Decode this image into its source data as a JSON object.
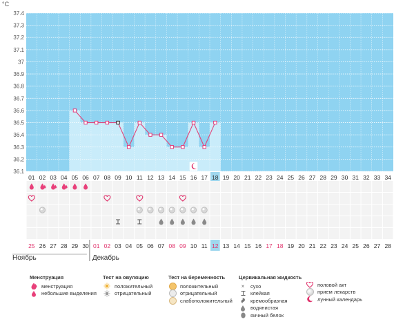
{
  "chart_data": {
    "type": "line",
    "unit_label": "°C",
    "y_ticks": [
      "37.4",
      "37.3",
      "37.2",
      "37.1",
      "37",
      "36.9",
      "36.8",
      "36.7",
      "36.6",
      "36.5",
      "36.4",
      "36.3",
      "36.2",
      "36.1"
    ],
    "ylim": [
      36.1,
      37.4
    ],
    "cycle_days": [
      "01",
      "02",
      "03",
      "04",
      "05",
      "06",
      "07",
      "08",
      "09",
      "10",
      "11",
      "12",
      "13",
      "14",
      "15",
      "16",
      "17",
      "18",
      "19",
      "20",
      "21",
      "22",
      "23",
      "24",
      "25",
      "26",
      "27",
      "28",
      "29",
      "30",
      "31",
      "32",
      "33",
      "34"
    ],
    "temperature_days": [
      5,
      6,
      7,
      8,
      9,
      10,
      11,
      12,
      13,
      14,
      15,
      16,
      17,
      18
    ],
    "temperatures": [
      36.6,
      36.5,
      36.5,
      36.5,
      36.5,
      36.3,
      36.5,
      36.4,
      36.4,
      36.3,
      36.3,
      36.5,
      36.3,
      36.5
    ],
    "selected_day": 18,
    "lunar_day": 16,
    "menstruation_days": [
      1,
      2,
      3,
      4,
      5,
      6
    ],
    "heavy_menstruation_days": [
      2,
      3,
      4
    ],
    "intercourse_days": [
      1,
      8,
      11,
      15
    ],
    "medication_days": [
      2,
      11,
      12,
      13,
      14,
      15,
      16,
      17
    ],
    "sticky_days": [
      9,
      11
    ],
    "watery_days": [
      13,
      14,
      15,
      16,
      17
    ],
    "egg_white_days": [],
    "dates": [
      "25",
      "26",
      "27",
      "28",
      "29",
      "30",
      "01",
      "02",
      "03",
      "04",
      "05",
      "06",
      "07",
      "08",
      "09",
      "10",
      "11",
      "12",
      "13",
      "14",
      "15",
      "16",
      "17",
      "18",
      "19",
      "20",
      "21",
      "22",
      "23",
      "24",
      "25",
      "26",
      "27",
      "28"
    ],
    "highlight_dates": [
      1,
      7,
      8,
      14,
      15,
      18,
      23,
      24
    ],
    "months": [
      {
        "label": "Ноябрь",
        "start_day": 1
      },
      {
        "label": "Декабрь",
        "start_day": 7
      }
    ]
  },
  "legend": {
    "menstruation": {
      "title": "Менструация",
      "items": [
        "менструация",
        "небольшие выделения"
      ]
    },
    "ovulation": {
      "title": "Тест на овуляцию",
      "items": [
        "положительный",
        "отрицательный"
      ]
    },
    "pregnancy": {
      "title": "Тест на беременность",
      "items": [
        "положительный",
        "отрицательный",
        "слабоположительный"
      ]
    },
    "cervical": {
      "title": "Цервикальная жидкость",
      "items": [
        "сухо",
        "клейкая",
        "кремообразная",
        "водянистая",
        "яичный белок"
      ]
    },
    "other": {
      "items": [
        "половой акт",
        "прием лекарств",
        "лунный календарь"
      ]
    }
  },
  "colors": {
    "plot_bg": "#8fd3f1",
    "bar_fill": "#c9ecfa",
    "line": "#e0457a",
    "marker": "#e23a7a",
    "highlight": "#e0336c",
    "selected": "#9fd7ee"
  }
}
